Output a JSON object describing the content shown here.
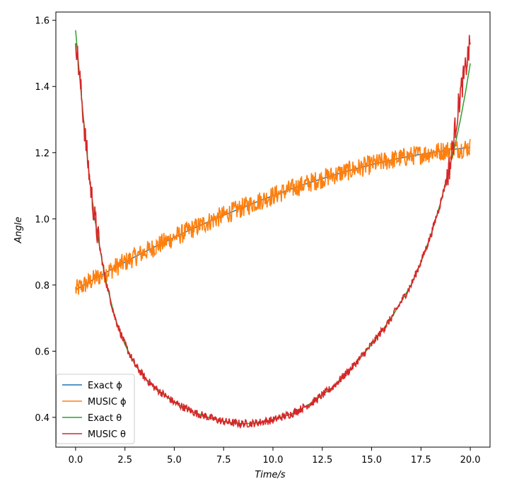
{
  "chart_data": {
    "type": "line",
    "xlabel": "Time/s",
    "ylabel": "Angle",
    "xlim": [
      -1.0,
      21.0
    ],
    "ylim": [
      0.31,
      1.625
    ],
    "xticks": [
      0.0,
      2.5,
      5.0,
      7.5,
      10.0,
      12.5,
      15.0,
      17.5,
      20.0
    ],
    "xtick_labels": [
      "0.0",
      "2.5",
      "5.0",
      "7.5",
      "10.0",
      "12.5",
      "15.0",
      "17.5",
      "20.0"
    ],
    "yticks": [
      0.4,
      0.6,
      0.8,
      1.0,
      1.2,
      1.4,
      1.6
    ],
    "ytick_labels": [
      "0.4",
      "0.6",
      "0.8",
      "1.0",
      "1.2",
      "1.4",
      "1.6"
    ],
    "grid": false,
    "legend_position": "lower-left",
    "series": [
      {
        "name": "Exact ϕ",
        "color": "#1f77b4",
        "x": [
          0,
          1,
          2,
          3,
          4,
          5,
          6,
          7,
          8,
          9,
          10,
          11,
          12,
          13,
          14,
          15,
          16,
          17,
          18,
          19,
          20
        ],
        "y": [
          0.785,
          0.82,
          0.853,
          0.885,
          0.915,
          0.944,
          0.972,
          0.998,
          1.023,
          1.047,
          1.07,
          1.092,
          1.112,
          1.131,
          1.148,
          1.164,
          1.178,
          1.19,
          1.2,
          1.209,
          1.216
        ]
      },
      {
        "name": "MUSIC ϕ",
        "color": "#ff7f0e",
        "x": [
          0,
          1,
          2,
          3,
          4,
          5,
          6,
          7,
          8,
          9,
          10,
          11,
          12,
          13,
          14,
          15,
          16,
          17,
          18,
          19,
          20
        ],
        "y": [
          0.785,
          0.82,
          0.853,
          0.885,
          0.915,
          0.944,
          0.972,
          0.998,
          1.023,
          1.047,
          1.07,
          1.092,
          1.112,
          1.131,
          1.148,
          1.164,
          1.178,
          1.19,
          1.2,
          1.209,
          1.216
        ],
        "noise_amplitude": 0.03
      },
      {
        "name": "Exact θ",
        "color": "#2ca02c",
        "x": [
          0,
          0.25,
          0.5,
          0.75,
          1,
          1.5,
          2,
          2.5,
          3,
          3.5,
          4,
          5,
          6,
          7,
          7.5,
          8,
          8.5,
          9,
          10,
          11,
          12,
          13,
          14,
          15,
          16,
          17,
          17.5,
          18,
          18.5,
          19,
          19.25,
          19.5,
          19.75,
          20
        ],
        "y": [
          1.57,
          1.4,
          1.24,
          1.1,
          0.99,
          0.82,
          0.7,
          0.62,
          0.56,
          0.52,
          0.49,
          0.445,
          0.415,
          0.395,
          0.388,
          0.383,
          0.381,
          0.382,
          0.392,
          0.412,
          0.445,
          0.49,
          0.55,
          0.62,
          0.7,
          0.8,
          0.87,
          0.95,
          1.05,
          1.17,
          1.23,
          1.3,
          1.38,
          1.47
        ]
      },
      {
        "name": "MUSIC θ",
        "color": "#d62728",
        "x": [
          0,
          0.25,
          0.5,
          0.75,
          1,
          1.5,
          2,
          2.5,
          3,
          3.5,
          4,
          5,
          6,
          7,
          7.5,
          8,
          8.5,
          9,
          10,
          11,
          12,
          13,
          14,
          15,
          16,
          17,
          17.5,
          18,
          18.5,
          19,
          19.25,
          19.5,
          19.75,
          20
        ],
        "y": [
          1.55,
          1.4,
          1.24,
          1.1,
          0.99,
          0.82,
          0.7,
          0.62,
          0.56,
          0.52,
          0.49,
          0.445,
          0.415,
          0.395,
          0.388,
          0.383,
          0.381,
          0.382,
          0.392,
          0.412,
          0.445,
          0.49,
          0.55,
          0.62,
          0.7,
          0.8,
          0.87,
          0.95,
          1.05,
          1.17,
          1.28,
          1.38,
          1.45,
          1.53
        ],
        "noise_amplitude": 0.012
      }
    ]
  }
}
